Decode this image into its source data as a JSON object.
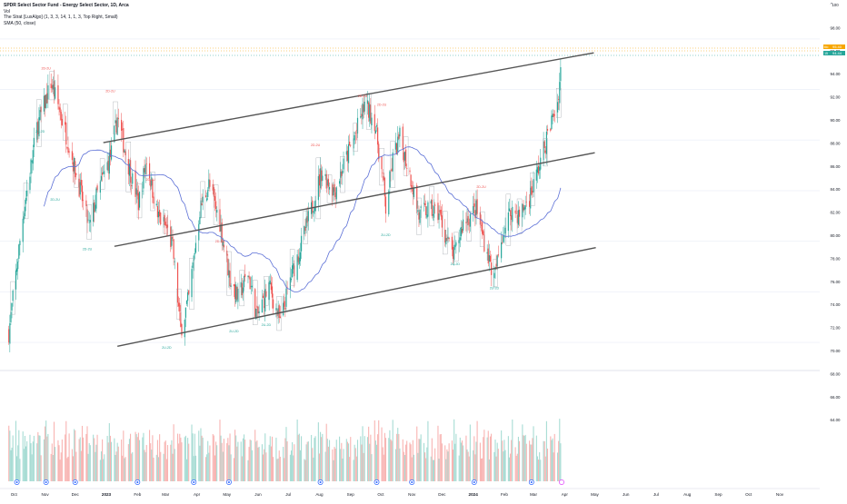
{
  "legend": {
    "title": "SPDR Select Sector Fund - Energy Select Sector, 1D, Arca",
    "line2": "Vol",
    "line3": "The Strat [LuxAlgo] (1, 3, 3, 14, 1, 1, 3, Top Right, Small)",
    "line4": "SMA (50, close)"
  },
  "top_right_icon": "chevron-up-icon",
  "colors": {
    "up": "#26a69a",
    "down": "#ef5350",
    "volume_up": "#a7dcd4",
    "volume_down": "#f8b4b2",
    "sma": "#5b6fd6",
    "channel": "#555555",
    "price_tag_orange": "#f7a600",
    "price_tag_green": "#26a69a",
    "event_blue": "#2962ff"
  },
  "chart_data": {
    "type": "candlestick",
    "x_axis_labels": [
      "Oct",
      "Nov",
      "Dec",
      "2023",
      "Feb",
      "Mar",
      "Apr",
      "May",
      "Jun",
      "Jul",
      "Aug",
      "Sep",
      "Oct",
      "Nov",
      "Dec",
      "2024",
      "Feb",
      "Mar",
      "Apr",
      "May",
      "Jun",
      "Jul",
      "Aug",
      "Sep",
      "Oct",
      "Nov"
    ],
    "y_axis_labels": [
      "100",
      "98.00",
      "96.00",
      "94.00",
      "92.00",
      "90.00",
      "88.00",
      "86.00",
      "84.00",
      "82.00",
      "80.00",
      "78.00",
      "76.00",
      "74.00",
      "72.00",
      "70.00",
      "68.00",
      "66.00",
      "64.00"
    ],
    "price_tags": [
      "Mo",
      "95.40",
      "15",
      "94.44"
    ],
    "price_range": [
      73.5,
      101.5
    ],
    "channel_lines": [
      {
        "name": "upper",
        "from": [
          "2022-12-29",
          90.8
        ],
        "to": [
          "2024-04-30",
          97.9
        ]
      },
      {
        "name": "middle",
        "from": [
          "2023-01-09",
          82.6
        ],
        "to": [
          "2024-05-01",
          90.0
        ]
      },
      {
        "name": "lower",
        "from": [
          "2023-01-12",
          74.7
        ],
        "to": [
          "2024-05-02",
          82.5
        ]
      }
    ],
    "sma_label": "SMA (50, close)",
    "strat_labels": [
      {
        "text": "2D-2U",
        "date": "2022-11-02",
        "price": 96.6,
        "color": "#ef5350"
      },
      {
        "text": "2U-2D",
        "date": "2022-10-27",
        "price": 91.6,
        "color": "#26a69a"
      },
      {
        "text": "2D-2U",
        "date": "2022-11-11",
        "price": 86.2,
        "color": "#26a69a"
      },
      {
        "text": "2D-2U",
        "date": "2022-12-13",
        "price": 82.3,
        "color": "#26a69a"
      },
      {
        "text": "2D-2U",
        "date": "2023-01-05",
        "price": 94.8,
        "color": "#ef5350"
      },
      {
        "text": "2D-2U",
        "date": "2023-02-14",
        "price": 87.8,
        "color": "#ef5350"
      },
      {
        "text": "2U-2D",
        "date": "2023-03-02",
        "price": 74.5,
        "color": "#26a69a"
      },
      {
        "text": "2D-2U",
        "date": "2023-04-24",
        "price": 82.9,
        "color": "#ef5350"
      },
      {
        "text": "2U-2D",
        "date": "2023-05-08",
        "price": 75.8,
        "color": "#26a69a"
      },
      {
        "text": "2U-2D",
        "date": "2023-06-09",
        "price": 76.3,
        "color": "#26a69a"
      },
      {
        "text": "2D-2U",
        "date": "2023-07-28",
        "price": 90.5,
        "color": "#ef5350"
      },
      {
        "text": "2D-2U",
        "date": "2023-09-13",
        "price": 94.4,
        "color": "#ef5350"
      },
      {
        "text": "2D-2U",
        "date": "2023-10-02",
        "price": 93.7,
        "color": "#ef5350"
      },
      {
        "text": "2U-2D",
        "date": "2023-10-06",
        "price": 83.4,
        "color": "#26a69a"
      },
      {
        "text": "2U-2D",
        "date": "2023-12-14",
        "price": 81.1,
        "color": "#26a69a"
      },
      {
        "text": "2D-2U",
        "date": "2024-01-09",
        "price": 87.2,
        "color": "#ef5350"
      },
      {
        "text": "2U-2D",
        "date": "2024-01-22",
        "price": 79.2,
        "color": "#26a69a"
      }
    ],
    "event_markers": [
      "2022-10-04",
      "2022-11-02",
      "2022-12-01",
      "2023-02-01",
      "2023-03-29",
      "2023-05-03",
      "2023-08-02",
      "2023-09-27",
      "2023-11-01",
      "2024-01-02",
      "2024-02-28"
    ],
    "key_points": [
      {
        "date": "2022-09-26",
        "close": 75.8
      },
      {
        "date": "2022-10-10",
        "close": 85.0
      },
      {
        "date": "2022-10-24",
        "close": 92.0
      },
      {
        "date": "2022-11-07",
        "close": 95.5
      },
      {
        "date": "2022-11-15",
        "close": 93.5
      },
      {
        "date": "2022-11-25",
        "close": 90.5
      },
      {
        "date": "2022-12-06",
        "close": 87.0
      },
      {
        "date": "2022-12-15",
        "close": 84.0
      },
      {
        "date": "2022-12-22",
        "close": 86.5
      },
      {
        "date": "2023-01-06",
        "close": 90.0
      },
      {
        "date": "2023-01-12",
        "close": 92.8
      },
      {
        "date": "2023-01-23",
        "close": 89.0
      },
      {
        "date": "2023-02-02",
        "close": 86.0
      },
      {
        "date": "2023-02-10",
        "close": 89.5
      },
      {
        "date": "2023-02-21",
        "close": 85.0
      },
      {
        "date": "2023-03-02",
        "close": 84.0
      },
      {
        "date": "2023-03-08",
        "close": 82.5
      },
      {
        "date": "2023-03-16",
        "close": 76.0
      },
      {
        "date": "2023-03-24",
        "close": 78.5
      },
      {
        "date": "2023-04-04",
        "close": 85.5
      },
      {
        "date": "2023-04-13",
        "close": 87.5
      },
      {
        "date": "2023-04-24",
        "close": 84.5
      },
      {
        "date": "2023-05-04",
        "close": 80.0
      },
      {
        "date": "2023-05-12",
        "close": 78.5
      },
      {
        "date": "2023-05-22",
        "close": 80.5
      },
      {
        "date": "2023-05-31",
        "close": 77.0
      },
      {
        "date": "2023-06-12",
        "close": 79.5
      },
      {
        "date": "2023-06-23",
        "close": 76.5
      },
      {
        "date": "2023-07-03",
        "close": 80.0
      },
      {
        "date": "2023-07-13",
        "close": 82.5
      },
      {
        "date": "2023-07-24",
        "close": 85.5
      },
      {
        "date": "2023-08-03",
        "close": 88.5
      },
      {
        "date": "2023-08-16",
        "close": 87.0
      },
      {
        "date": "2023-08-25",
        "close": 89.0
      },
      {
        "date": "2023-09-06",
        "close": 91.5
      },
      {
        "date": "2023-09-15",
        "close": 93.8
      },
      {
        "date": "2023-09-25",
        "close": 92.5
      },
      {
        "date": "2023-10-03",
        "close": 88.0
      },
      {
        "date": "2023-10-06",
        "close": 85.5
      },
      {
        "date": "2023-10-13",
        "close": 89.5
      },
      {
        "date": "2023-10-20",
        "close": 91.2
      },
      {
        "date": "2023-10-31",
        "close": 88.0
      },
      {
        "date": "2023-11-08",
        "close": 85.0
      },
      {
        "date": "2023-11-17",
        "close": 85.5
      },
      {
        "date": "2023-11-28",
        "close": 85.2
      },
      {
        "date": "2023-12-06",
        "close": 83.0
      },
      {
        "date": "2023-12-13",
        "close": 81.8
      },
      {
        "date": "2023-12-22",
        "close": 84.5
      },
      {
        "date": "2024-01-04",
        "close": 85.5
      },
      {
        "date": "2024-01-12",
        "close": 83.0
      },
      {
        "date": "2024-01-22",
        "close": 80.0
      },
      {
        "date": "2024-01-30",
        "close": 83.5
      },
      {
        "date": "2024-02-08",
        "close": 85.5
      },
      {
        "date": "2024-02-16",
        "close": 85.0
      },
      {
        "date": "2024-02-26",
        "close": 86.5
      },
      {
        "date": "2024-03-05",
        "close": 88.5
      },
      {
        "date": "2024-03-12",
        "close": 90.5
      },
      {
        "date": "2024-03-19",
        "close": 92.5
      },
      {
        "date": "2024-03-25",
        "close": 94.0
      },
      {
        "date": "2024-03-28",
        "close": 96.5
      }
    ]
  }
}
